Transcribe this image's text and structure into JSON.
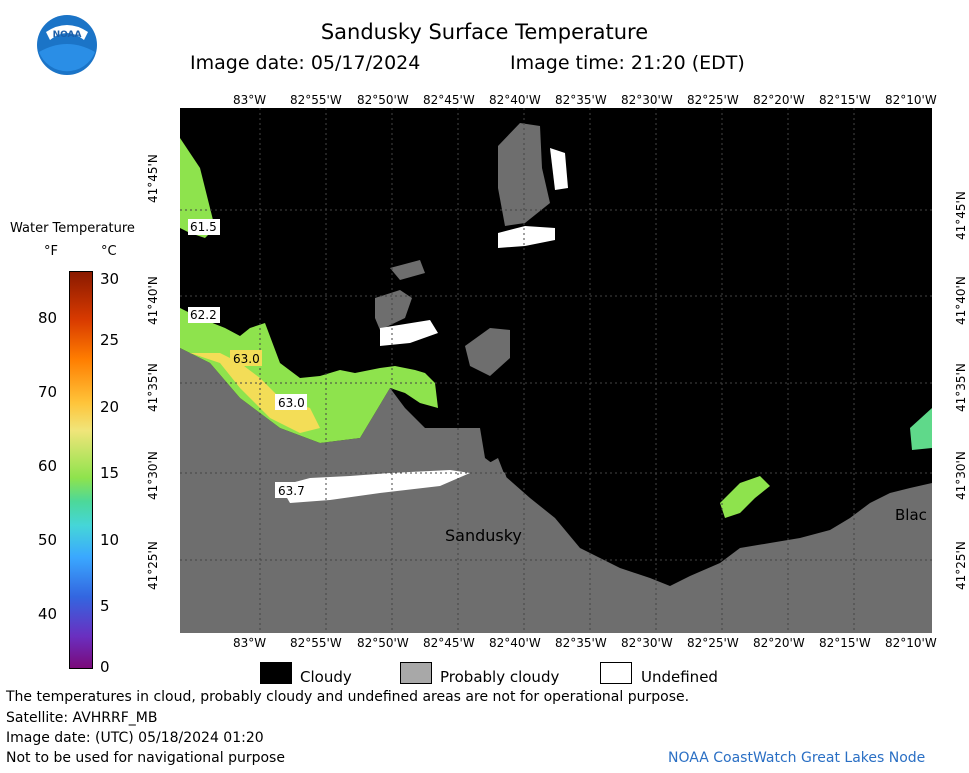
{
  "header": {
    "title": "Sandusky Surface Temperature",
    "date_label": "Image date: 05/17/2024",
    "time_label": "Image time: 21:20 (EDT)",
    "logo_text": "NOAA"
  },
  "map": {
    "lon_ticks": [
      "83°W",
      "82°55'W",
      "82°50'W",
      "82°45'W",
      "82°40'W",
      "82°35'W",
      "82°30'W",
      "82°25'W",
      "82°20'W",
      "82°15'W",
      "82°10'W"
    ],
    "lat_ticks": [
      "41°45'N",
      "41°40'N",
      "41°35'N",
      "41°30'N",
      "41°25'N"
    ],
    "place_labels": [
      "Sandusky",
      "Blac"
    ],
    "temperature_labels": [
      "61.5",
      "62.2",
      "63.0",
      "63.0",
      "63.7"
    ],
    "colors": {
      "cloudy": "#000000",
      "land": "#6e6e6e",
      "undefined": "#ffffff"
    }
  },
  "colorbar": {
    "title": "Water Temperature",
    "unit_f": "°F",
    "unit_c": "°C",
    "f_ticks": [
      "80",
      "70",
      "60",
      "50",
      "40"
    ],
    "c_ticks": [
      "30",
      "25",
      "20",
      "15",
      "10",
      "5",
      "0"
    ]
  },
  "legend": {
    "cloudy": "Cloudy",
    "probably_cloudy": "Probably cloudy",
    "undefined": "Undefined"
  },
  "footer": {
    "disclaimer": "The temperatures in cloud, probably cloudy and undefined areas are not for operational purpose.",
    "satellite": "Satellite: AVHRRF_MB",
    "utc_date": "Image date: (UTC) 05/18/2024  01:20",
    "navigation": "Not to be used for navigational purpose",
    "credit": "NOAA CoastWatch Great Lakes Node"
  }
}
